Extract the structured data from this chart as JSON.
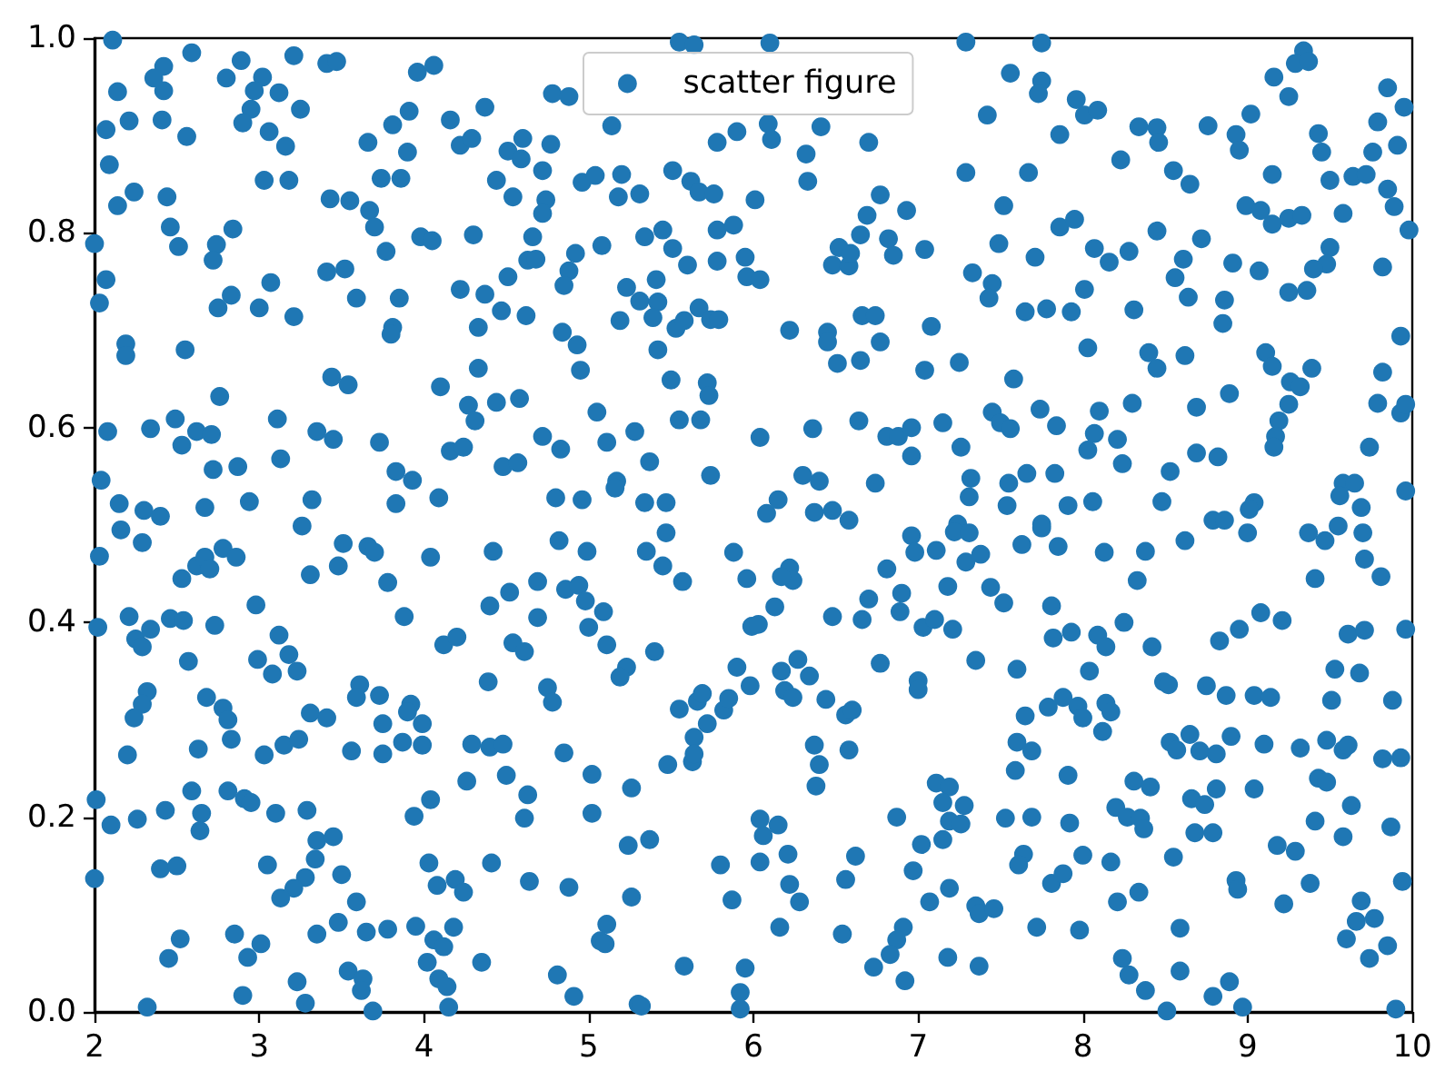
{
  "chart_data": {
    "type": "scatter",
    "xlim": [
      2,
      10
    ],
    "xticks": [
      2,
      3,
      4,
      5,
      6,
      7,
      8,
      9,
      10
    ],
    "ylim": [
      0,
      1
    ],
    "yticks": [
      {
        "value": 0,
        "label": "0.0"
      },
      0.2,
      0.4,
      0.6,
      0.8,
      {
        "value": 1,
        "label": "1.0"
      }
    ],
    "grid": false,
    "legend": "top",
    "marker": "circle",
    "series": [
      {
        "name": "scatter figure",
        "color": "#1f77b4",
        "x": [
          2.11,
          2.59,
          2.89,
          3.21,
          3.41,
          3.47,
          3.96,
          4.06,
          2.42,
          2.36,
          2.42,
          2.14,
          2.8,
          3.02,
          2.97,
          3.12,
          2.95,
          3.25,
          2.9,
          3.06,
          3.16,
          2.07,
          2.21,
          2.41,
          2.56,
          4.37,
          4.16,
          3.91,
          3.81,
          3.66,
          3.9,
          4.22,
          4.29,
          4.51,
          4.6,
          2.09,
          3.03,
          3.18,
          3.74,
          3.86,
          4.44,
          4.54,
          2.14,
          2.24,
          2.44,
          3.43,
          3.55,
          3.67,
          3.7,
          3.77,
          3.98,
          4.05,
          4.3,
          2.46,
          2.51,
          2.84,
          2.74,
          2.72,
          2.0,
          4.63,
          2.07,
          2.03,
          3.41,
          3.52,
          3.59,
          3.85,
          4.22,
          4.37,
          4.47,
          4.51,
          4.62,
          3.07,
          2.83,
          2.75,
          3.0,
          3.21,
          3.81,
          3.8,
          4.33,
          2.19,
          2.19,
          2.55,
          4.33,
          3.44,
          3.54,
          4.1,
          2.76,
          4.58,
          4.27,
          4.31,
          4.44,
          2.08,
          2.34,
          2.49,
          2.53,
          2.62,
          2.71,
          3.11,
          3.35,
          3.45,
          3.73,
          3.13,
          4.16,
          4.24,
          4.48,
          4.57,
          2.72,
          2.87,
          3.83,
          3.93,
          2.04,
          2.15,
          2.3,
          2.4,
          2.67,
          2.94,
          3.32,
          3.83,
          4.09,
          5.55,
          5.64,
          6.1,
          7.29,
          4.78,
          4.88,
          5.14,
          4.59,
          4.77,
          4.72,
          5.78,
          5.9,
          6.09,
          6.11,
          6.41,
          6.7,
          6.32,
          6.33,
          7.29,
          4.96,
          5.04,
          5.2,
          5.18,
          5.31,
          5.51,
          5.62,
          5.67,
          5.76,
          6.01,
          6.77,
          4.74,
          4.72,
          6.69,
          6.65,
          6.93,
          4.66,
          4.68,
          4.92,
          4.88,
          4.85,
          5.08,
          5.34,
          5.45,
          5.51,
          5.78,
          5.88,
          5.6,
          5.78,
          5.95,
          5.96,
          6.04,
          6.52,
          6.48,
          6.58,
          6.59,
          6.82,
          6.85,
          7.04,
          7.33,
          5.41,
          5.23,
          5.31,
          5.42,
          5.39,
          5.19,
          5.53,
          5.58,
          5.67,
          5.74,
          5.79,
          6.22,
          6.45,
          6.45,
          6.66,
          6.74,
          6.77,
          7.08,
          4.84,
          4.93,
          5.42,
          6.51,
          6.65,
          7.04,
          7.25,
          4.95,
          5.5,
          5.72,
          5.73,
          5.05,
          5.55,
          5.68,
          4.72,
          4.83,
          5.11,
          5.28,
          6.04,
          6.36,
          6.64,
          6.81,
          6.88,
          6.96,
          7.15,
          7.26,
          6.96,
          5.37,
          5.17,
          5.16,
          5.74,
          6.3,
          6.4,
          6.74,
          7.32,
          7.31,
          4.8,
          4.96,
          5.34,
          5.47,
          6.08,
          6.15,
          6.37,
          6.48,
          6.58,
          7.24,
          7.75,
          7.56,
          7.75,
          7.73,
          7.42,
          7.96,
          8.01,
          8.09,
          7.86,
          9.34,
          9.29,
          9.37,
          9.16,
          9.25,
          9.85,
          9.95,
          9.79,
          9.91,
          9.76,
          8.34,
          8.45,
          8.46,
          8.76,
          8.93,
          8.95,
          9.02,
          9.43,
          9.45,
          8.23,
          7.67,
          8.55,
          8.65,
          9.15,
          9.5,
          9.64,
          9.72,
          9.85,
          9.89,
          7.52,
          8.99,
          9.08,
          9.15,
          9.25,
          9.33,
          9.58,
          9.98,
          7.86,
          7.95,
          8.45,
          8.72,
          7.49,
          8.07,
          8.16,
          8.28,
          7.71,
          7.45,
          7.43,
          8.61,
          8.56,
          8.64,
          8.91,
          9.07,
          9.5,
          9.48,
          9.4,
          9.25,
          9.36,
          9.82,
          8.01,
          7.65,
          7.78,
          7.93,
          8.31,
          8.86,
          8.85,
          8.03,
          9.93,
          8.4,
          8.45,
          8.62,
          9.11,
          9.15,
          9.39,
          9.26,
          9.32,
          9.25,
          9.19,
          9.17,
          9.16,
          9.82,
          7.58,
          8.89,
          7.45,
          7.5,
          7.56,
          7.74,
          7.84,
          8.3,
          8.1,
          8.07,
          8.03,
          8.69,
          9.79,
          9.93,
          9.96,
          8.21,
          8.24,
          9.74,
          8.69,
          8.82,
          7.55,
          7.66,
          7.83,
          8.53,
          9.58,
          9.65,
          9.56,
          9.69,
          9.96,
          7.54,
          7.91,
          8.06,
          8.48,
          8.79,
          8.86,
          9.04,
          9.01,
          7.75,
          2.16,
          2.29,
          2.03,
          2.53,
          2.62,
          2.67,
          2.7,
          2.78,
          2.86,
          3.26,
          3.31,
          3.51,
          3.48,
          3.66,
          3.7,
          3.78,
          4.04,
          4.42,
          4.52,
          4.4,
          2.98,
          3.88,
          2.02,
          2.21,
          2.25,
          2.29,
          2.34,
          2.46,
          2.54,
          2.73,
          2.57,
          3.12,
          3.18,
          3.23,
          2.99,
          3.08,
          4.12,
          4.2,
          4.54,
          4.61,
          4.39,
          2.32,
          2.29,
          2.24,
          2.68,
          2.78,
          2.81,
          2.83,
          2.63,
          2.2,
          3.31,
          3.41,
          3.61,
          3.59,
          3.73,
          3.75,
          3.92,
          3.9,
          3.99,
          3.03,
          3.15,
          3.24,
          3.56,
          3.75,
          3.87,
          3.99,
          4.29,
          4.4,
          4.48,
          4.26,
          4.5,
          4.63,
          2.59,
          2.81,
          2.91,
          2.95,
          3.1,
          3.29,
          2.65,
          2.64,
          2.43,
          2.26,
          2.1,
          2.01,
          3.94,
          4.04,
          4.61,
          3.35,
          3.45,
          3.34,
          3.05,
          2.4,
          2.5,
          2.0,
          3.28,
          3.21,
          3.13,
          3.5,
          4.03,
          4.08,
          4.19,
          4.24,
          4.41,
          4.64,
          3.59,
          3.48,
          3.65,
          3.78,
          3.95,
          4.06,
          4.12,
          4.18,
          3.35,
          2.52,
          2.45,
          2.85,
          3.01,
          2.93,
          4.02,
          4.09,
          4.14,
          4.35,
          3.54,
          3.63,
          3.62,
          3.23,
          2.9,
          3.28,
          2.32,
          3.69,
          4.15,
          4.82,
          4.99,
          5.47,
          5.35,
          5.45,
          5.57,
          5.88,
          5.96,
          6.22,
          6.24,
          6.17,
          6.13,
          5.99,
          6.03,
          4.69,
          4.86,
          4.94,
          4.98,
          5.0,
          5.09,
          4.69,
          5.11,
          5.23,
          5.19,
          5.4,
          4.75,
          4.78,
          6.48,
          6.66,
          6.7,
          6.81,
          6.9,
          6.89,
          6.96,
          6.98,
          7.11,
          7.22,
          7.31,
          7.29,
          7.18,
          7.03,
          7.1,
          7.21,
          6.77,
          7.0,
          7.0,
          7.35,
          5.9,
          5.98,
          6.17,
          6.27,
          6.34,
          6.19,
          6.24,
          6.44,
          6.56,
          6.6,
          5.55,
          5.66,
          5.69,
          5.82,
          5.85,
          5.72,
          5.64,
          5.48,
          5.63,
          5.64,
          4.85,
          5.02,
          5.02,
          5.26,
          6.37,
          6.4,
          6.38,
          6.58,
          7.11,
          7.19,
          7.15,
          7.28,
          7.19,
          7.26,
          7.15,
          6.87,
          7.02,
          6.04,
          6.15,
          6.06,
          6.04,
          6.21,
          6.62,
          6.56,
          6.97,
          5.24,
          5.37,
          5.8,
          4.88,
          5.26,
          5.87,
          6.22,
          6.28,
          7.07,
          7.19,
          7.35,
          7.37,
          5.11,
          5.07,
          5.1,
          6.16,
          6.54,
          6.91,
          6.87,
          6.83,
          6.73,
          6.92,
          7.18,
          7.37,
          4.81,
          4.91,
          5.58,
          5.95,
          5.92,
          5.92,
          5.3,
          5.32,
          7.38,
          7.63,
          7.75,
          7.85,
          8.13,
          8.38,
          8.33,
          8.62,
          9.0,
          9.37,
          9.47,
          9.55,
          9.7,
          9.71,
          9.81,
          9.41,
          7.44,
          7.52,
          7.81,
          7.82,
          7.93,
          8.09,
          8.14,
          8.25,
          8.42,
          7.6,
          8.04,
          8.83,
          8.95,
          9.08,
          9.21,
          9.61,
          9.71,
          9.96,
          9.53,
          9.68,
          9.51,
          9.88,
          8.49,
          8.52,
          8.75,
          8.87,
          9.04,
          9.14,
          7.65,
          7.79,
          7.88,
          7.97,
          8.0,
          8.14,
          8.17,
          8.12,
          7.6,
          7.69,
          8.53,
          8.57,
          8.65,
          8.71,
          8.81,
          8.9,
          9.1,
          9.32,
          9.48,
          9.58,
          9.61,
          9.82,
          9.93,
          7.59,
          7.91,
          8.31,
          8.41,
          9.43,
          9.48,
          9.04,
          8.66,
          8.74,
          8.81,
          7.53,
          7.69,
          7.92,
          8.2,
          8.27,
          8.35,
          8.37,
          8.68,
          8.79,
          9.63,
          9.41,
          9.58,
          9.87,
          9.18,
          9.29,
          7.64,
          7.61,
          8.0,
          8.17,
          8.55,
          7.81,
          7.88,
          8.21,
          8.34,
          8.93,
          8.94,
          9.38,
          9.22,
          9.94,
          7.46,
          7.72,
          7.98,
          8.59,
          9.69,
          9.66,
          9.77,
          9.6,
          9.74,
          9.85,
          8.24,
          8.28,
          8.38,
          8.59,
          8.79,
          8.89,
          8.51,
          8.97,
          9.9
        ],
        "values": [
          0.998,
          0.985,
          0.977,
          0.982,
          0.974,
          0.976,
          0.965,
          0.972,
          0.971,
          0.959,
          0.946,
          0.945,
          0.959,
          0.96,
          0.946,
          0.944,
          0.927,
          0.927,
          0.913,
          0.904,
          0.889,
          0.906,
          0.915,
          0.916,
          0.899,
          0.929,
          0.916,
          0.925,
          0.911,
          0.893,
          0.883,
          0.89,
          0.897,
          0.884,
          0.897,
          0.87,
          0.854,
          0.854,
          0.856,
          0.856,
          0.854,
          0.837,
          0.828,
          0.842,
          0.837,
          0.835,
          0.833,
          0.823,
          0.806,
          0.781,
          0.796,
          0.792,
          0.798,
          0.806,
          0.786,
          0.804,
          0.788,
          0.772,
          0.789,
          0.772,
          0.752,
          0.728,
          0.76,
          0.763,
          0.733,
          0.733,
          0.742,
          0.737,
          0.72,
          0.755,
          0.715,
          0.749,
          0.736,
          0.723,
          0.723,
          0.714,
          0.703,
          0.696,
          0.703,
          0.686,
          0.674,
          0.68,
          0.661,
          0.652,
          0.644,
          0.642,
          0.632,
          0.63,
          0.623,
          0.607,
          0.626,
          0.596,
          0.599,
          0.609,
          0.582,
          0.596,
          0.593,
          0.609,
          0.596,
          0.588,
          0.585,
          0.568,
          0.576,
          0.58,
          0.56,
          0.564,
          0.557,
          0.56,
          0.555,
          0.546,
          0.546,
          0.522,
          0.515,
          0.509,
          0.518,
          0.524,
          0.526,
          0.522,
          0.528,
          0.996,
          0.993,
          0.995,
          0.996,
          0.943,
          0.94,
          0.91,
          0.876,
          0.891,
          0.864,
          0.893,
          0.904,
          0.912,
          0.896,
          0.909,
          0.893,
          0.881,
          0.853,
          0.862,
          0.852,
          0.859,
          0.86,
          0.837,
          0.84,
          0.864,
          0.853,
          0.842,
          0.84,
          0.834,
          0.839,
          0.834,
          0.82,
          0.818,
          0.798,
          0.823,
          0.796,
          0.773,
          0.779,
          0.761,
          0.746,
          0.787,
          0.796,
          0.803,
          0.784,
          0.803,
          0.808,
          0.767,
          0.771,
          0.775,
          0.755,
          0.752,
          0.785,
          0.767,
          0.766,
          0.779,
          0.794,
          0.777,
          0.783,
          0.759,
          0.752,
          0.744,
          0.73,
          0.729,
          0.713,
          0.71,
          0.702,
          0.71,
          0.723,
          0.711,
          0.711,
          0.7,
          0.698,
          0.688,
          0.715,
          0.715,
          0.688,
          0.704,
          0.698,
          0.685,
          0.68,
          0.666,
          0.669,
          0.659,
          0.667,
          0.659,
          0.649,
          0.646,
          0.633,
          0.616,
          0.608,
          0.608,
          0.591,
          0.578,
          0.585,
          0.596,
          0.59,
          0.599,
          0.607,
          0.591,
          0.591,
          0.6,
          0.605,
          0.58,
          0.571,
          0.565,
          0.545,
          0.538,
          0.551,
          0.551,
          0.545,
          0.543,
          0.548,
          0.529,
          0.528,
          0.526,
          0.523,
          0.523,
          0.512,
          0.526,
          0.513,
          0.515,
          0.505,
          0.501,
          0.995,
          0.964,
          0.956,
          0.943,
          0.921,
          0.937,
          0.921,
          0.926,
          0.901,
          0.987,
          0.974,
          0.976,
          0.96,
          0.94,
          0.949,
          0.929,
          0.914,
          0.89,
          0.883,
          0.909,
          0.908,
          0.893,
          0.91,
          0.901,
          0.885,
          0.922,
          0.902,
          0.883,
          0.875,
          0.862,
          0.864,
          0.85,
          0.86,
          0.854,
          0.858,
          0.86,
          0.845,
          0.827,
          0.828,
          0.828,
          0.823,
          0.809,
          0.815,
          0.818,
          0.82,
          0.803,
          0.806,
          0.814,
          0.802,
          0.794,
          0.789,
          0.784,
          0.77,
          0.781,
          0.775,
          0.748,
          0.733,
          0.773,
          0.754,
          0.734,
          0.769,
          0.761,
          0.785,
          0.768,
          0.763,
          0.739,
          0.741,
          0.765,
          0.742,
          0.719,
          0.722,
          0.719,
          0.721,
          0.731,
          0.707,
          0.682,
          0.694,
          0.677,
          0.661,
          0.674,
          0.677,
          0.663,
          0.661,
          0.647,
          0.642,
          0.624,
          0.607,
          0.591,
          0.58,
          0.657,
          0.65,
          0.635,
          0.616,
          0.605,
          0.599,
          0.619,
          0.602,
          0.625,
          0.617,
          0.594,
          0.577,
          0.621,
          0.625,
          0.615,
          0.624,
          0.588,
          0.563,
          0.58,
          0.574,
          0.57,
          0.543,
          0.553,
          0.553,
          0.555,
          0.543,
          0.543,
          0.53,
          0.518,
          0.535,
          0.52,
          0.52,
          0.524,
          0.524,
          0.505,
          0.505,
          0.523,
          0.516,
          0.501,
          0.495,
          0.482,
          0.468,
          0.445,
          0.458,
          0.467,
          0.455,
          0.476,
          0.467,
          0.499,
          0.449,
          0.481,
          0.458,
          0.478,
          0.472,
          0.441,
          0.467,
          0.473,
          0.431,
          0.417,
          0.418,
          0.406,
          0.395,
          0.406,
          0.383,
          0.375,
          0.393,
          0.404,
          0.402,
          0.397,
          0.36,
          0.387,
          0.367,
          0.35,
          0.362,
          0.347,
          0.377,
          0.385,
          0.379,
          0.37,
          0.339,
          0.329,
          0.316,
          0.302,
          0.323,
          0.312,
          0.3,
          0.28,
          0.27,
          0.264,
          0.307,
          0.302,
          0.336,
          0.323,
          0.325,
          0.296,
          0.316,
          0.308,
          0.296,
          0.264,
          0.274,
          0.28,
          0.268,
          0.265,
          0.277,
          0.274,
          0.275,
          0.272,
          0.275,
          0.237,
          0.243,
          0.223,
          0.227,
          0.227,
          0.219,
          0.215,
          0.204,
          0.207,
          0.204,
          0.186,
          0.207,
          0.198,
          0.192,
          0.218,
          0.201,
          0.218,
          0.199,
          0.176,
          0.18,
          0.157,
          0.151,
          0.147,
          0.15,
          0.137,
          0.138,
          0.127,
          0.117,
          0.141,
          0.153,
          0.13,
          0.136,
          0.123,
          0.153,
          0.134,
          0.113,
          0.092,
          0.082,
          0.085,
          0.088,
          0.074,
          0.067,
          0.087,
          0.08,
          0.075,
          0.055,
          0.08,
          0.07,
          0.056,
          0.051,
          0.034,
          0.026,
          0.051,
          0.042,
          0.034,
          0.022,
          0.031,
          0.017,
          0.009,
          0.005,
          0.001,
          0.005,
          0.484,
          0.473,
          0.492,
          0.473,
          0.458,
          0.442,
          0.472,
          0.445,
          0.456,
          0.443,
          0.447,
          0.416,
          0.396,
          0.398,
          0.442,
          0.434,
          0.438,
          0.422,
          0.395,
          0.411,
          0.405,
          0.377,
          0.354,
          0.344,
          0.37,
          0.333,
          0.318,
          0.406,
          0.403,
          0.424,
          0.455,
          0.43,
          0.411,
          0.489,
          0.472,
          0.474,
          0.493,
          0.492,
          0.462,
          0.437,
          0.395,
          0.403,
          0.393,
          0.358,
          0.34,
          0.331,
          0.361,
          0.354,
          0.335,
          0.35,
          0.362,
          0.345,
          0.33,
          0.323,
          0.321,
          0.305,
          0.31,
          0.311,
          0.319,
          0.327,
          0.31,
          0.322,
          0.296,
          0.282,
          0.254,
          0.257,
          0.265,
          0.266,
          0.244,
          0.204,
          0.23,
          0.274,
          0.254,
          0.232,
          0.269,
          0.235,
          0.231,
          0.215,
          0.212,
          0.196,
          0.193,
          0.177,
          0.2,
          0.172,
          0.198,
          0.192,
          0.181,
          0.154,
          0.162,
          0.16,
          0.136,
          0.145,
          0.171,
          0.177,
          0.151,
          0.128,
          0.118,
          0.115,
          0.131,
          0.113,
          0.113,
          0.127,
          0.109,
          0.101,
          0.09,
          0.073,
          0.07,
          0.087,
          0.08,
          0.087,
          0.074,
          0.059,
          0.046,
          0.032,
          0.056,
          0.047,
          0.038,
          0.016,
          0.047,
          0.045,
          0.02,
          0.003,
          0.008,
          0.006,
          0.47,
          0.48,
          0.497,
          0.478,
          0.472,
          0.473,
          0.443,
          0.484,
          0.492,
          0.492,
          0.484,
          0.499,
          0.492,
          0.465,
          0.447,
          0.445,
          0.436,
          0.42,
          0.417,
          0.384,
          0.39,
          0.387,
          0.375,
          0.4,
          0.375,
          0.352,
          0.35,
          0.381,
          0.393,
          0.41,
          0.402,
          0.388,
          0.392,
          0.393,
          0.352,
          0.348,
          0.32,
          0.32,
          0.339,
          0.336,
          0.335,
          0.325,
          0.325,
          0.323,
          0.304,
          0.313,
          0.323,
          0.314,
          0.302,
          0.317,
          0.308,
          0.288,
          0.277,
          0.268,
          0.277,
          0.269,
          0.285,
          0.268,
          0.265,
          0.283,
          0.275,
          0.271,
          0.279,
          0.269,
          0.274,
          0.26,
          0.261,
          0.248,
          0.243,
          0.237,
          0.231,
          0.24,
          0.236,
          0.229,
          0.219,
          0.213,
          0.229,
          0.199,
          0.2,
          0.194,
          0.21,
          0.2,
          0.199,
          0.188,
          0.184,
          0.184,
          0.212,
          0.196,
          0.18,
          0.19,
          0.171,
          0.165,
          0.162,
          0.151,
          0.161,
          0.154,
          0.159,
          0.132,
          0.142,
          0.113,
          0.123,
          0.135,
          0.126,
          0.132,
          0.111,
          0.134,
          0.106,
          0.087,
          0.084,
          0.086,
          0.114,
          0.093,
          0.096,
          0.075,
          0.055,
          0.068,
          0.055,
          0.038,
          0.022,
          0.042,
          0.016,
          0.031,
          0.001,
          0.005,
          0.003
        ]
      }
    ]
  }
}
